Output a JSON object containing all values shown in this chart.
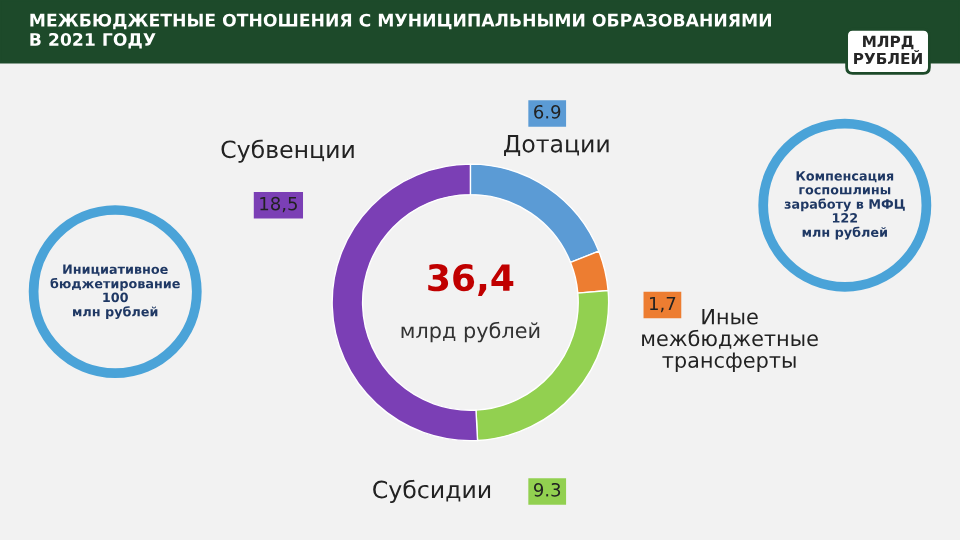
{
  "chart_data": {
    "type": "donut",
    "title": "МЕЖБЮДЖЕТНЫЕ ОТНОШЕНИЯ С МУНИЦИПАЛЬНЫМИ ОБРАЗОВАНИЯМИ\nВ 2021 ГОДУ",
    "subtitle": "МЛРД\nРУБЛЕЙ",
    "categories": [
      "Дотации",
      "Иные\nмежбюджетные\nтрансферты",
      "Субсидии",
      "Субвенции"
    ],
    "values": [
      6.9,
      1.7,
      9.3,
      18.5
    ],
    "value_labels": [
      "6.9",
      "1,7",
      "9.3",
      "18,5"
    ],
    "colors": [
      "#5b9bd5",
      "#ed7d31",
      "#92d050",
      "#7b3fb5"
    ],
    "annotations": [
      "36,4",
      "млрд рублей",
      "Инициативное\nбюджетирование\n100\nмлн рублей",
      "Компенсация\nгоспошлины\nзаработу в МФЦ\n122\nмлн рублей"
    ]
  }
}
